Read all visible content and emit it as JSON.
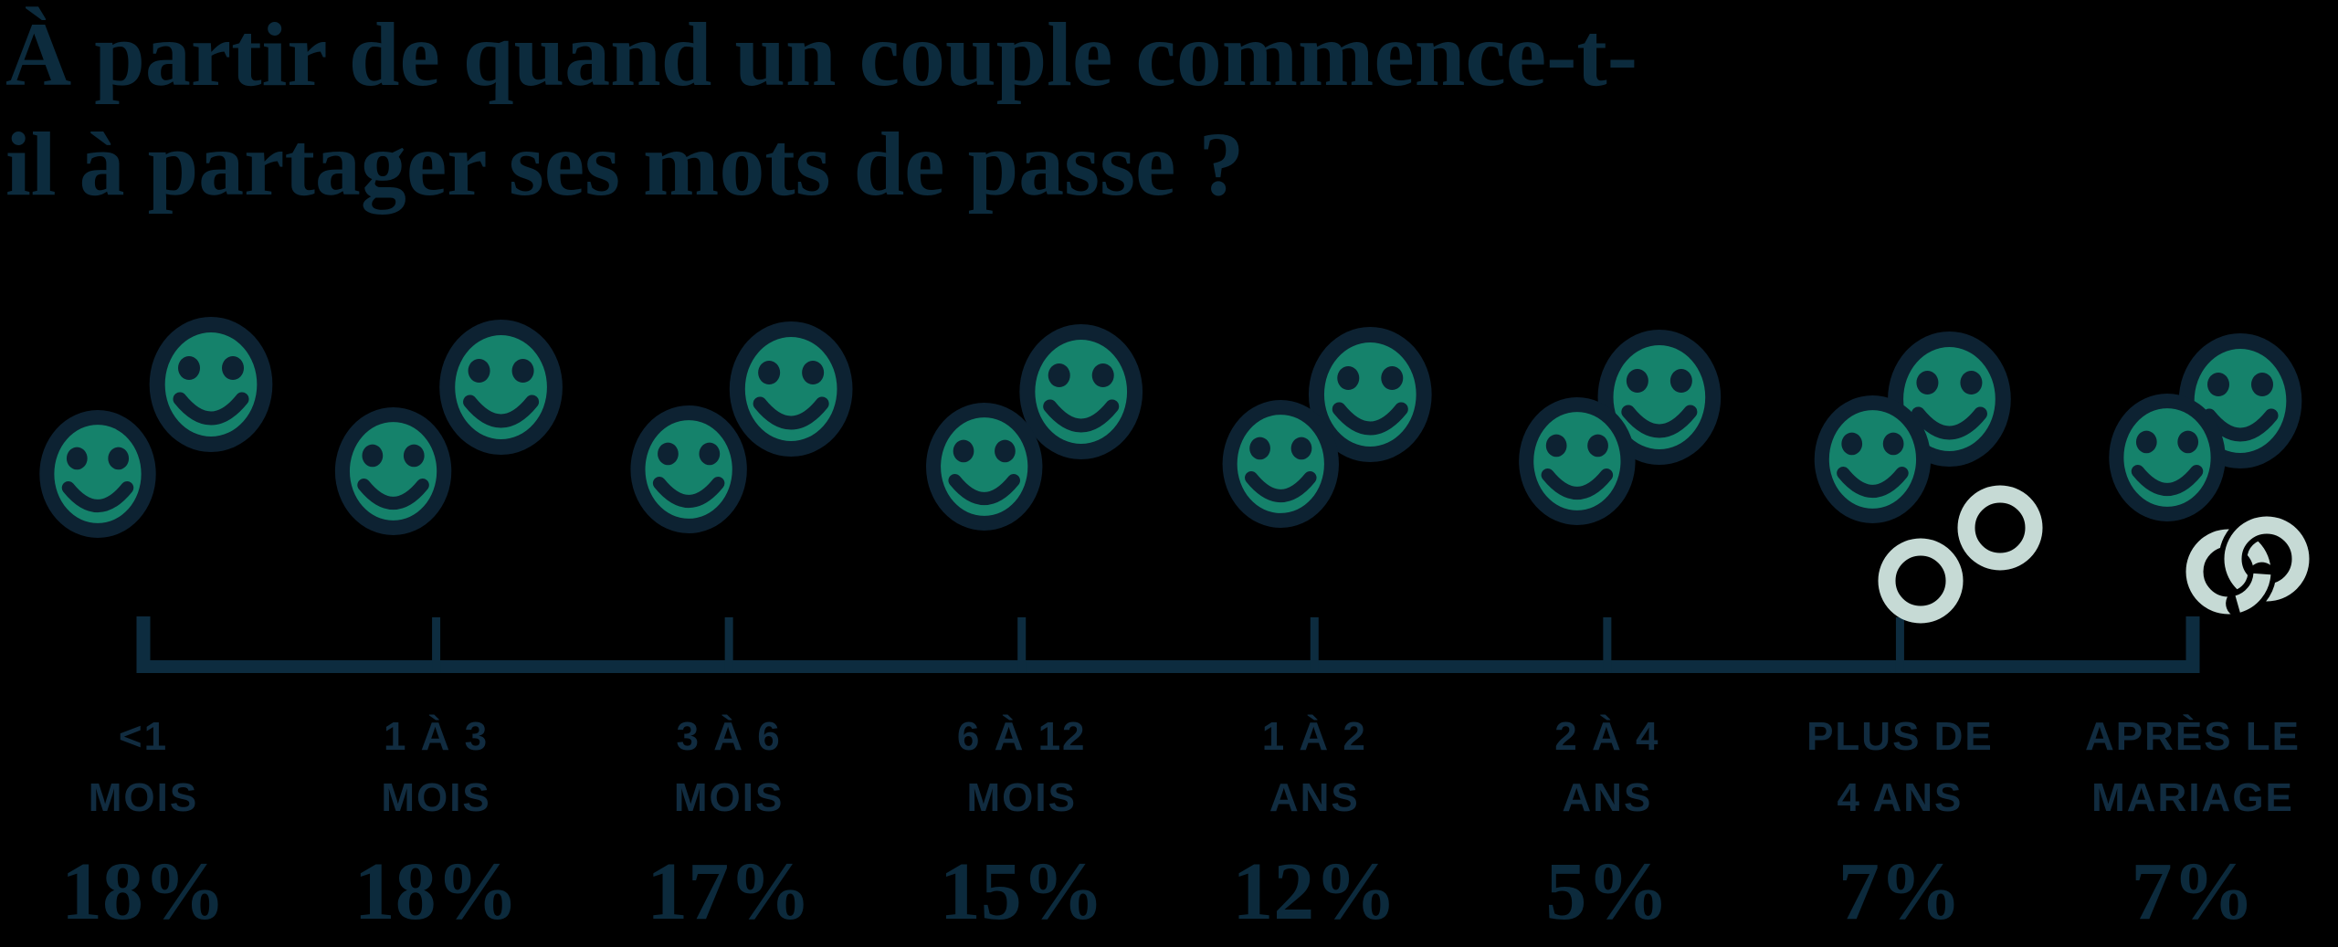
{
  "title": {
    "lines": [
      "À partir de quand un couple commence-t-",
      "il à partager ses mots de passe ?"
    ],
    "full": "À partir de quand un couple commence-t-il à partager ses mots de passe ?"
  },
  "colors": {
    "background": "#000000",
    "title_text": "#0C2B3D",
    "label_text": "#112C40",
    "value_text": "#0C2A3C",
    "axis": "#0D2C3F",
    "smiley_fill": "#15826B",
    "smiley_outline": "#0D2232",
    "ring": "#C6DAD5"
  },
  "chart_data": {
    "type": "bar",
    "subtype": "pictogram",
    "title": "À partir de quand un couple commence-t-il à partager ses mots de passe ?",
    "categories": [
      "<1 MOIS",
      "1 À 3 MOIS",
      "3 À 6 MOIS",
      "6 À 12 MOIS",
      "1 À 2 ANS",
      "2 À 4 ANS",
      "PLUS DE 4 ANS",
      "APRÈS LE MARIAGE"
    ],
    "values": [
      18,
      18,
      17,
      15,
      12,
      5,
      7,
      7
    ],
    "value_labels": [
      "18%",
      "18%",
      "17%",
      "15%",
      "12%",
      "5%",
      "7%",
      "7%"
    ],
    "category_label_lines": [
      [
        "<1",
        "MOIS"
      ],
      [
        "1 À 3",
        "MOIS"
      ],
      [
        "3 À 6",
        "MOIS"
      ],
      [
        "6 À 12",
        "MOIS"
      ],
      [
        "1 À 2",
        "ANS"
      ],
      [
        "2 À 4",
        "ANS"
      ],
      [
        "PLUS DE",
        "4 ANS"
      ],
      [
        "APRÈS LE",
        "MARIAGE"
      ]
    ],
    "icons": {
      "per_category": "smiley-pair",
      "closeness_level": [
        1,
        2,
        3,
        4,
        5,
        6,
        7,
        8
      ],
      "rings": [
        null,
        null,
        null,
        null,
        null,
        null,
        "separate-rings",
        "interlocked-rings"
      ],
      "story": "the two smileys of each pair move closer and overlap as the relationship duration grows; wedding rings appear for the last two categories"
    },
    "axis": {
      "orientation": "horizontal",
      "ticks_per_category": true,
      "grid": false,
      "legend": "none"
    }
  }
}
